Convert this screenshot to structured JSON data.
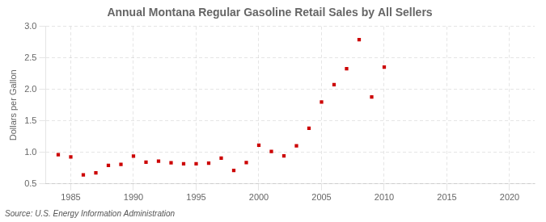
{
  "chart_data": {
    "type": "scatter",
    "title": "Annual Montana Regular Gasoline Retail Sales by All Sellers",
    "ylabel": "Dollars per Gallon",
    "source": "Source: U.S. Energy Information Administration",
    "x": [
      1984,
      1985,
      1986,
      1987,
      1988,
      1989,
      1990,
      1991,
      1992,
      1993,
      1994,
      1995,
      1996,
      1997,
      1998,
      1999,
      2000,
      2001,
      2002,
      2003,
      2004,
      2005,
      2006,
      2007,
      2008,
      2009,
      2010
    ],
    "values": [
      0.963,
      0.93,
      0.643,
      0.675,
      0.793,
      0.81,
      0.94,
      0.845,
      0.86,
      0.835,
      0.82,
      0.82,
      0.83,
      0.91,
      0.715,
      0.84,
      1.115,
      1.015,
      0.945,
      1.105,
      1.385,
      1.8,
      2.075,
      2.33,
      2.79,
      1.88,
      2.355
    ],
    "color": "#cc0000",
    "marker": "square",
    "xlim": [
      1983,
      2022
    ],
    "xticks": [
      1985,
      1990,
      1995,
      2000,
      2005,
      2010,
      2015,
      2020
    ],
    "ylim": [
      0.5,
      3.0
    ],
    "yticks": [
      0.5,
      {
        "value": 1.0,
        "label": "1.0"
      },
      1.5,
      {
        "value": 2.0,
        "label": "2.0"
      },
      2.5,
      {
        "value": 3.0,
        "label": "3.0"
      }
    ],
    "grid": true
  }
}
